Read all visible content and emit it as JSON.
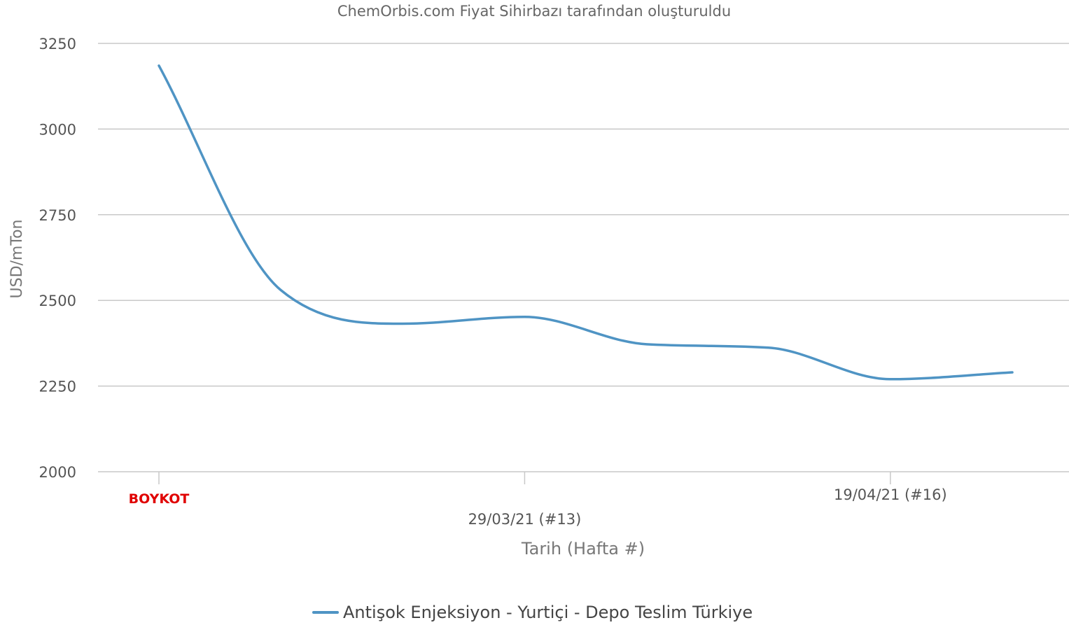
{
  "chart_data": {
    "type": "line",
    "subtitle": "ChemOrbis.com Fiyat Sihirbazı tarafından oluşturuldu",
    "ylabel": "USD/mTon",
    "xlabel": "Tarih (Hafta #)",
    "ylim": [
      2000,
      3250
    ],
    "yticks": [
      "2000",
      "2250",
      "2500",
      "2750",
      "3000",
      "3250"
    ],
    "grid": true,
    "legend_position": "bottom-center",
    "x_tick_labels": [
      {
        "label": "BOYKOT",
        "week": 10,
        "style": "highlight"
      },
      {
        "label": "29/03/21 (#13)",
        "week": 13,
        "style": "normal"
      },
      {
        "label": "19/04/21 (#16)",
        "week": 16,
        "style": "normal"
      }
    ],
    "series": [
      {
        "name": "Antişok Enjeksiyon - Yurtiçi - Depo Teslim Türkiye",
        "color": "#4f94c4",
        "points": [
          {
            "week": 10.0,
            "value": 3185
          },
          {
            "week": 11.0,
            "value": 2530
          },
          {
            "week": 12.0,
            "value": 2432
          },
          {
            "week": 13.0,
            "value": 2452
          },
          {
            "week": 14.0,
            "value": 2372
          },
          {
            "week": 15.0,
            "value": 2362
          },
          {
            "week": 16.0,
            "value": 2270
          },
          {
            "week": 17.0,
            "value": 2290
          }
        ]
      }
    ],
    "colors": {
      "series": "#4f94c4",
      "highlight": "#e00000",
      "grid": "#c8c8c8"
    }
  }
}
